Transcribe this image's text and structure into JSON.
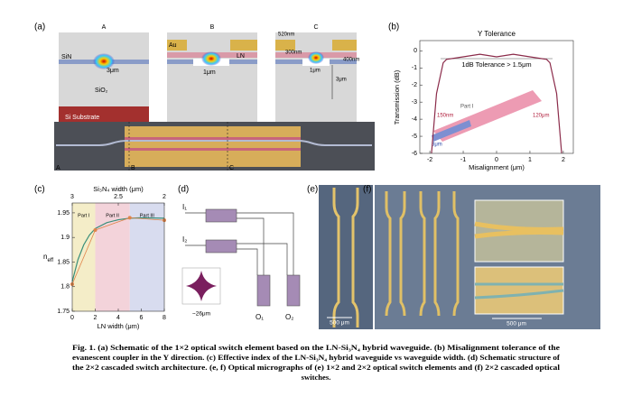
{
  "panel_a": {
    "label": "(a)",
    "section_titles": [
      "A",
      "B",
      "C"
    ],
    "sin": "SiN",
    "sio2": "SiO₂",
    "substrate": "Si Substrate",
    "gap_a": "3μm",
    "au": "Au",
    "ln": "LN",
    "gap_b": "1μm",
    "dims_c": [
      "520nm",
      "300nm",
      "400nm",
      "3μm"
    ],
    "device_marks": [
      "A",
      "B",
      "C"
    ]
  },
  "panel_b": {
    "label": "(b)",
    "title": "Y Tolerance",
    "xlabel": "Misalignment (μm)",
    "ylabel": "Transmission (dB)",
    "annotation": "1dB Tolerance > 1.5μm",
    "inset_labels": [
      "150nm",
      "120μm",
      "3μm",
      "Part I"
    ],
    "x": [
      -1.95,
      -1.8,
      -1.6,
      -1.5,
      -1,
      -0.5,
      0,
      0.5,
      1,
      1.5,
      1.6,
      1.8,
      1.95
    ],
    "y": [
      -6,
      -2.5,
      -0.7,
      -0.5,
      -0.35,
      -0.2,
      -0.35,
      -0.2,
      -0.35,
      -0.5,
      -0.7,
      -2.5,
      -6
    ],
    "color": "#8b2b4a",
    "xlim": [
      -2.3,
      2.3
    ],
    "ylim": [
      -6,
      0.6
    ],
    "xticks": [
      -2,
      -1,
      0,
      1,
      2
    ],
    "yticks": [
      0,
      -1,
      -2,
      -3,
      -4,
      -5,
      -6
    ]
  },
  "panel_c": {
    "label": "(c)",
    "xlabel": "LN width (μm)",
    "top_label": "Si₃N₄ width (μm)",
    "ylabel": "n",
    "ylabel_sub": "eff",
    "parts": [
      "Part I",
      "Part II",
      "Part III"
    ],
    "part_bounds": [
      0,
      2,
      5,
      8
    ],
    "part_colors": [
      "#f4edc8",
      "#f3d3da",
      "#d8dcef"
    ],
    "xlim": [
      0,
      8
    ],
    "ylim": [
      1.75,
      1.97
    ],
    "xticks": [
      0,
      2,
      4,
      6,
      8
    ],
    "top_xlim": [
      3,
      2
    ],
    "top_xticks": [
      3,
      2.5,
      2
    ],
    "yticks": [
      1.75,
      1.8,
      1.85,
      1.9,
      1.95
    ],
    "series": [
      {
        "color": "#3a8f7a",
        "x": [
          0,
          0.5,
          1,
          1.5,
          2,
          3,
          4,
          5,
          6,
          8
        ],
        "values": [
          1.81,
          1.855,
          1.885,
          1.905,
          1.918,
          1.93,
          1.936,
          1.939,
          1.94,
          1.939
        ]
      },
      {
        "color": "#e0844a",
        "x": [
          0,
          2,
          5,
          8
        ],
        "values": [
          1.805,
          1.915,
          1.94,
          1.935
        ]
      }
    ]
  },
  "panel_d": {
    "label": "(d)",
    "inputs": [
      "I₁",
      "I₂"
    ],
    "outputs": [
      "O₁",
      "O₂"
    ],
    "scale": "~26μm"
  },
  "panel_e": {
    "label": "(e)",
    "scale": "500 μm"
  },
  "panel_f": {
    "label": "(f)",
    "scale": "500 μm"
  },
  "caption": [
    "Fig. 1. (a) Schematic of the 1×2 optical switch element based on the LN-Si₃N₄ hybrid waveguide. (b) Misalignment tolerance of the",
    "evanescent coupler in the Y direction. (c) Effective index of the LN-Si₃N₄ hybrid waveguide vs waveguide width. (d) Schematic structure of",
    "the 2×2 cascaded switch architecture. (e, f) Optical micrographs of (e) 1×2 and 2×2 optical switch elements and (f) 2×2 cascaded optical",
    "switches."
  ]
}
